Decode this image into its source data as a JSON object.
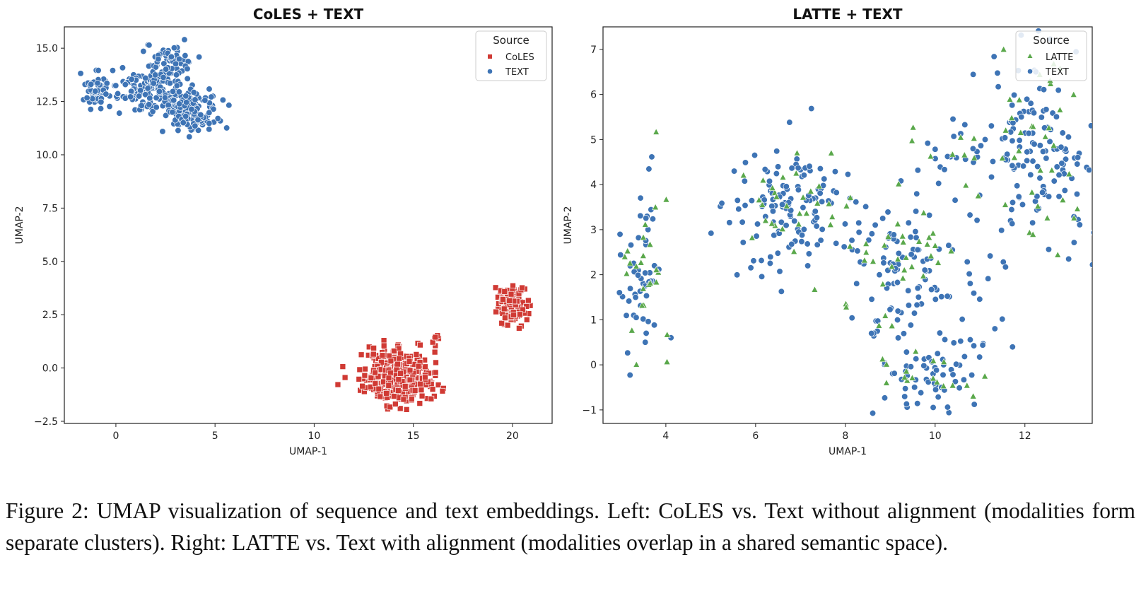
{
  "chart_data": [
    {
      "type": "scatter",
      "title": "CoLES + TEXT",
      "xlabel": "UMAP-1",
      "ylabel": "UMAP-2",
      "xlim": [
        -2.6,
        22
      ],
      "ylim": [
        -2.6,
        16
      ],
      "xticks": [
        0,
        5,
        10,
        15,
        20
      ],
      "xtick_labels": [
        "0",
        "5",
        "10",
        "15",
        "20"
      ],
      "yticks": [
        -2.5,
        0,
        2.5,
        5,
        7.5,
        10,
        12.5,
        15
      ],
      "ytick_labels": [
        "−2.5",
        "0.0",
        "2.5",
        "5.0",
        "7.5",
        "10.0",
        "12.5",
        "15.0"
      ],
      "grid": false,
      "legend": {
        "title": "Source",
        "placement": "top-right"
      },
      "series": [
        {
          "name": "CoLES",
          "color": "#d03a34",
          "marker": "square",
          "clusters": [
            {
              "center": [
                14.2,
                -0.4
              ],
              "spread": [
                0.9,
                0.6
              ],
              "n": 420
            },
            {
              "center": [
                20.0,
                3.0
              ],
              "spread": [
                0.35,
                0.4
              ],
              "n": 160
            },
            {
              "center": [
                16.15,
                1.3
              ],
              "spread": [
                0.08,
                0.12
              ],
              "n": 6
            }
          ]
        },
        {
          "name": "TEXT",
          "color": "#3e74b5",
          "marker": "circle",
          "clusters": [
            {
              "center": [
                -1.0,
                13.0
              ],
              "spread": [
                0.3,
                0.4
              ],
              "n": 60
            },
            {
              "center": [
                1.5,
                13.0
              ],
              "spread": [
                0.8,
                0.5
              ],
              "n": 120
            },
            {
              "center": [
                2.7,
                14.4
              ],
              "spread": [
                0.6,
                0.5
              ],
              "n": 80
            },
            {
              "center": [
                3.2,
                12.5
              ],
              "spread": [
                0.6,
                0.5
              ],
              "n": 80
            },
            {
              "center": [
                4.0,
                12.0
              ],
              "spread": [
                0.6,
                0.45
              ],
              "n": 110
            }
          ]
        }
      ]
    },
    {
      "type": "scatter",
      "title": "LATTE + TEXT",
      "xlabel": "UMAP-1",
      "ylabel": "UMAP-2",
      "xlim": [
        2.6,
        13.5
      ],
      "ylim": [
        -1.3,
        7.5
      ],
      "xticks": [
        4,
        6,
        8,
        10,
        12
      ],
      "xtick_labels": [
        "4",
        "6",
        "8",
        "10",
        "12"
      ],
      "yticks": [
        -1,
        0,
        1,
        2,
        3,
        4,
        5,
        6,
        7
      ],
      "ytick_labels": [
        "−1",
        "0",
        "1",
        "2",
        "3",
        "4",
        "5",
        "6",
        "7"
      ],
      "grid": false,
      "legend": {
        "title": "Source",
        "placement": "top-right"
      },
      "series": [
        {
          "name": "LATTE",
          "color": "#5aa84b",
          "marker": "triangle",
          "clusters": [
            {
              "center": [
                3.5,
                2.0
              ],
              "spread": [
                0.3,
                0.9
              ],
              "n": 25
            },
            {
              "center": [
                6.8,
                3.5
              ],
              "spread": [
                0.7,
                0.7
              ],
              "n": 35
            },
            {
              "center": [
                9.3,
                2.0
              ],
              "spread": [
                0.6,
                0.8
              ],
              "n": 30
            },
            {
              "center": [
                9.8,
                -0.4
              ],
              "spread": [
                0.5,
                0.3
              ],
              "n": 15
            },
            {
              "center": [
                12.3,
                4.8
              ],
              "spread": [
                0.6,
                1.1
              ],
              "n": 35
            },
            {
              "center": [
                10.4,
                4.6
              ],
              "spread": [
                0.8,
                0.4
              ],
              "n": 10
            }
          ]
        },
        {
          "name": "TEXT",
          "color": "#3e74b5",
          "marker": "circle",
          "clusters": [
            {
              "center": [
                3.5,
                2.0
              ],
              "spread": [
                0.3,
                0.9
              ],
              "n": 50
            },
            {
              "center": [
                6.8,
                3.5
              ],
              "spread": [
                0.7,
                0.7
              ],
              "n": 130
            },
            {
              "center": [
                9.3,
                2.0
              ],
              "spread": [
                0.6,
                0.8
              ],
              "n": 90
            },
            {
              "center": [
                9.8,
                -0.4
              ],
              "spread": [
                0.5,
                0.3
              ],
              "n": 40
            },
            {
              "center": [
                10.8,
                0.2
              ],
              "spread": [
                0.5,
                0.4
              ],
              "n": 25
            },
            {
              "center": [
                12.3,
                4.8
              ],
              "spread": [
                0.6,
                1.1
              ],
              "n": 130
            },
            {
              "center": [
                10.4,
                4.6
              ],
              "spread": [
                0.8,
                0.4
              ],
              "n": 25
            },
            {
              "center": [
                10.8,
                2.3
              ],
              "spread": [
                0.5,
                0.4
              ],
              "n": 15
            }
          ]
        }
      ]
    }
  ],
  "caption": "Figure 2: UMAP visualization of sequence and text embeddings. Left: CoLES vs. Text without alignment (modalities form separate clusters). Right: LATTE vs. Text with alignment (modalities overlap in a shared semantic space)."
}
